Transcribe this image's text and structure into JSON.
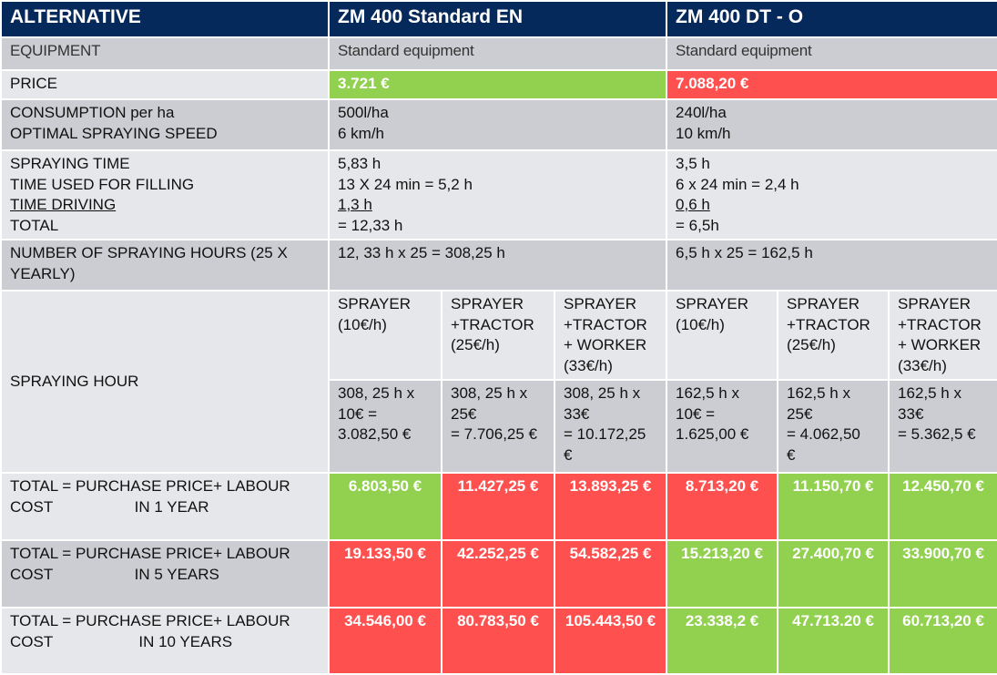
{
  "header": {
    "col0": "ALTERNATIVE",
    "col1": "ZM 400 Standard EN",
    "col2": "ZM 400 DT - O"
  },
  "rows": {
    "equipment": {
      "label": "EQUIPMENT",
      "a": "Standard equipment",
      "b": "Standard equipment"
    },
    "price": {
      "label": "PRICE",
      "a": "3.721 €",
      "b": "7.088,20 €"
    },
    "consumption": {
      "label1": "CONSUMPTION per ha",
      "label2": "OPTIMAL SPRAYING SPEED",
      "a1": "500l/ha",
      "a2": "6 km/h",
      "b1": "240l/ha",
      "b2": "10 km/h"
    },
    "time": {
      "l1": "SPRAYING TIME",
      "l2": "TIME USED FOR FILLING",
      "l3": "TIME DRIVING",
      "l4": "TOTAL",
      "a1": "5,83 h",
      "a2": "13 X 24 min = 5,2 h",
      "a3": "1,3 h",
      "a4": "= 12,33 h",
      "b1": "3,5 h",
      "b2": "6 x 24 min = 2,4 h",
      "b3": "0,6 h",
      "b4": "= 6,5h"
    },
    "hours": {
      "label": "NUMBER OF SPRAYING HOURS (25 X YEARLY)",
      "a": "12, 33 h x 25 = 308,25 h",
      "b": "6,5 h x 25 = 162,5 h"
    },
    "spraying_hour": {
      "label": "SPRAYING HOUR",
      "options": [
        {
          "l1": "SPRAYER",
          "l2": "(10€/h)",
          "l3": "",
          "l4": ""
        },
        {
          "l1": "SPRAYER",
          "l2": "+TRACTOR",
          "l3": "(25€/h)",
          "l4": ""
        },
        {
          "l1": "SPRAYER",
          "l2": "+TRACTOR",
          "l3": "+ WORKER",
          "l4": "(33€/h)"
        },
        {
          "l1": "SPRAYER",
          "l2": "(10€/h)",
          "l3": "",
          "l4": ""
        },
        {
          "l1": "SPRAYER",
          "l2": "+TRACTOR",
          "l3": "(25€/h)",
          "l4": ""
        },
        {
          "l1": "SPRAYER",
          "l2": "+TRACTOR",
          "l3": "+ WORKER",
          "l4": "(33€/h)"
        }
      ],
      "calc": [
        {
          "l1": "308, 25 h x",
          "l2": "10€ =",
          "l3": "3.082,50 €",
          "l4": ""
        },
        {
          "l1": "308, 25 h x",
          "l2": "25€",
          "l3": "= 7.706,25 €",
          "l4": ""
        },
        {
          "l1": "308, 25 h x",
          "l2": "33€",
          "l3": "= 10.172,25",
          "l4": "€"
        },
        {
          "l1": "162,5 h x",
          "l2": "10€ =",
          "l3": "1.625,00 €",
          "l4": ""
        },
        {
          "l1": "162,5 h x",
          "l2": "25€",
          "l3": "= 4.062,50",
          "l4": "€"
        },
        {
          "l1": "162,5 h x",
          "l2": "33€",
          "l3": "= 5.362,5 €",
          "l4": ""
        }
      ]
    },
    "totals": [
      {
        "l1": "TOTAL = PURCHASE PRICE+ LABOUR",
        "l2": "COST                   IN 1 YEAR",
        "values": [
          "6.803,50 €",
          "11.427,25 €",
          "13.893,25 €",
          "8.713,20 €",
          "11.150,70 €",
          "12.450,70 €"
        ],
        "status": [
          "green",
          "red",
          "red",
          "red",
          "green",
          "green"
        ]
      },
      {
        "l1": "TOTAL = PURCHASE PRICE+ LABOUR",
        "l2": "COST                   IN 5 YEARS",
        "values": [
          "19.133,50 €",
          "42.252,25 €",
          "54.582,25 €",
          "15.213,20 €",
          "27.400,70 €",
          "33.900,70 €"
        ],
        "status": [
          "red",
          "red",
          "red",
          "green",
          "green",
          "green"
        ]
      },
      {
        "l1": "TOTAL = PURCHASE PRICE+ LABOUR",
        "l2": "COST                    IN 10 YEARS",
        "values": [
          "34.546,00 €",
          "80.783,50 €",
          "105.443,50 €",
          "23.338,2 €",
          "47.713.20 €",
          "60.713,20 €"
        ],
        "status": [
          "red",
          "red",
          "red",
          "green",
          "green",
          "green"
        ]
      }
    ]
  },
  "colors": {
    "header": "#06295b",
    "green": "#92d050",
    "red": "#ff5050",
    "dark": "#cbcdd2",
    "light": "#e6e7ea"
  }
}
